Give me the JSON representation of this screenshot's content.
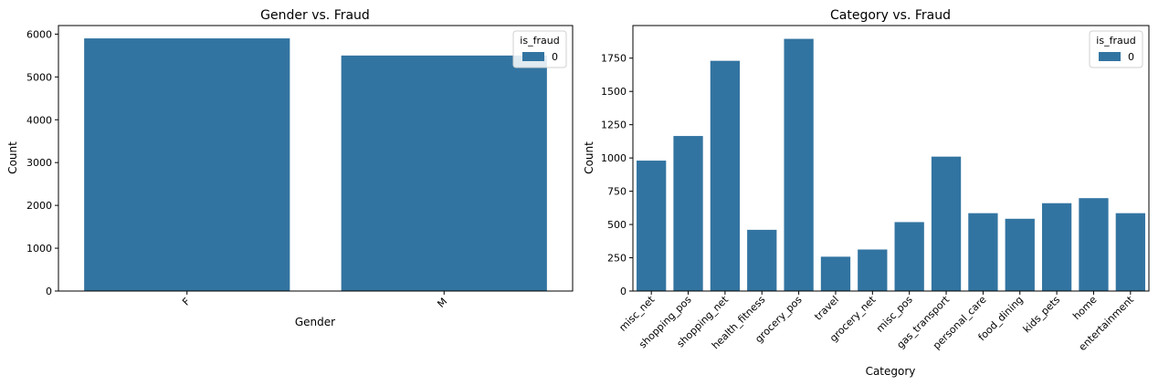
{
  "chart_data": [
    {
      "type": "bar",
      "title": "Gender vs. Fraud",
      "xlabel": "Gender",
      "ylabel": "Count",
      "categories": [
        "F",
        "M"
      ],
      "series": [
        {
          "name": "0",
          "values": [
            5900,
            5500
          ]
        }
      ],
      "ylim": [
        0,
        6200
      ],
      "yticks": [
        0,
        1000,
        2000,
        3000,
        4000,
        5000,
        6000
      ],
      "legend": {
        "title": "is_fraud",
        "placement": "top-right"
      },
      "grid": false,
      "bar_color": "#3274a1",
      "xtick_rotation": 45
    },
    {
      "type": "bar",
      "title": "Category vs. Fraud",
      "xlabel": "Category",
      "ylabel": "Count",
      "categories": [
        "misc_net",
        "shopping_pos",
        "shopping_net",
        "health_fitness",
        "grocery_pos",
        "travel",
        "grocery_net",
        "misc_pos",
        "gas_transport",
        "personal_care",
        "food_dining",
        "kids_pets",
        "home",
        "entertainment"
      ],
      "series": [
        {
          "name": "0",
          "values": [
            980,
            1165,
            1730,
            460,
            1895,
            258,
            312,
            518,
            1010,
            585,
            543,
            660,
            698,
            585
          ]
        }
      ],
      "ylim": [
        0,
        1995
      ],
      "yticks": [
        0,
        250,
        500,
        750,
        1000,
        1250,
        1500,
        1750
      ],
      "legend": {
        "title": "is_fraud",
        "placement": "top-right"
      },
      "grid": false,
      "bar_color": "#3274a1",
      "xtick_rotation": 45
    }
  ]
}
